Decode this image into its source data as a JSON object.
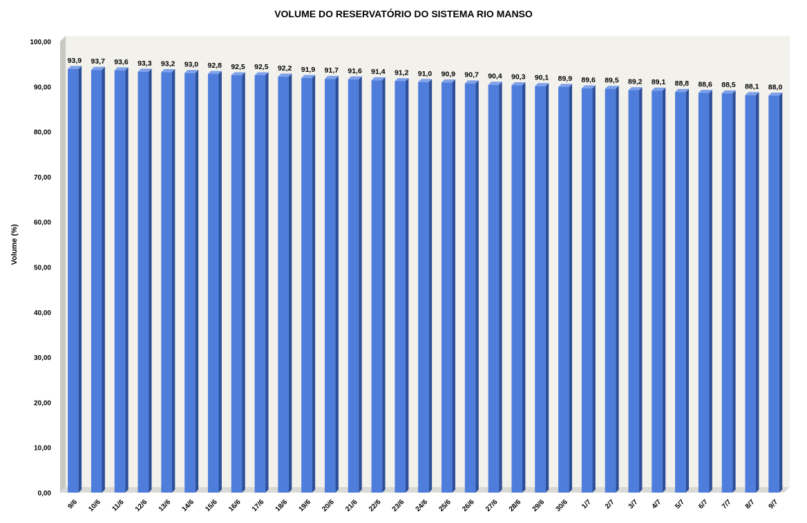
{
  "chart_data": {
    "type": "bar",
    "title": "VOLUME DO RESERVATÓRIO DO SISTEMA RIO MANSO",
    "xlabel": "",
    "ylabel": "Volume (%)",
    "ylim": [
      0,
      100
    ],
    "y_ticks": [
      "0,00",
      "10,00",
      "20,00",
      "30,00",
      "40,00",
      "50,00",
      "60,00",
      "70,00",
      "80,00",
      "90,00",
      "100,00"
    ],
    "grid": false,
    "legend": "none",
    "categories": [
      "9/6",
      "10/6",
      "11/6",
      "12/6",
      "13/6",
      "14/6",
      "15/6",
      "16/6",
      "17/6",
      "18/6",
      "19/6",
      "20/6",
      "21/6",
      "22/6",
      "23/6",
      "24/6",
      "25/6",
      "26/6",
      "27/6",
      "28/6",
      "29/6",
      "30/6",
      "1/7",
      "2/7",
      "3/7",
      "4/7",
      "5/7",
      "6/7",
      "7/7",
      "8/7",
      "9/7"
    ],
    "values": [
      93.9,
      93.7,
      93.6,
      93.3,
      93.2,
      93.0,
      92.8,
      92.5,
      92.5,
      92.2,
      91.9,
      91.7,
      91.6,
      91.4,
      91.2,
      91.0,
      90.9,
      90.7,
      90.4,
      90.3,
      90.1,
      89.9,
      89.6,
      89.5,
      89.2,
      89.1,
      88.8,
      88.6,
      88.5,
      88.1,
      88.0
    ],
    "data_labels": [
      "93,9",
      "93,7",
      "93,6",
      "93,3",
      "93,2",
      "93,0",
      "92,8",
      "92,5",
      "92,5",
      "92,2",
      "91,9",
      "91,7",
      "91,6",
      "91,4",
      "91,2",
      "91,0",
      "90,9",
      "90,7",
      "90,4",
      "90,3",
      "90,1",
      "89,9",
      "89,6",
      "89,5",
      "89,2",
      "89,1",
      "88,8",
      "88,6",
      "88,5",
      "88,1",
      "88,0"
    ],
    "colors": {
      "bar_front": "#4f7ddb",
      "bar_side": "#2d4f99",
      "bar_top": "#7ea1ea",
      "wall": "#f2f1ec",
      "wall_side": "#c8c8c4",
      "floor": "#d9d9d5"
    }
  }
}
